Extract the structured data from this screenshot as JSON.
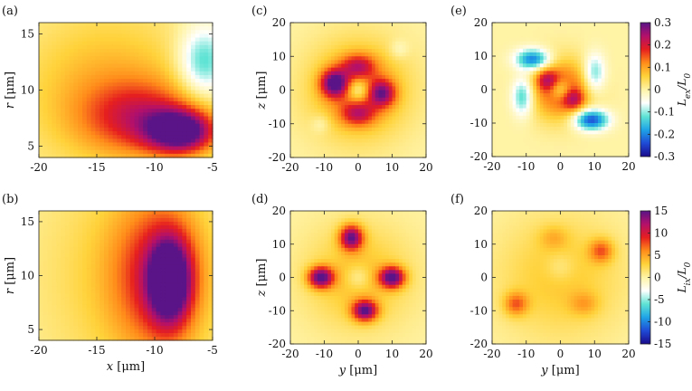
{
  "chart_data": [
    {
      "type": "heatmap",
      "panel_label": "(a)",
      "xlabel": "",
      "ylabel": "r [μm]",
      "xlim": [
        -20,
        -5
      ],
      "ylim": [
        4,
        16
      ],
      "xticks": [
        -20,
        -15,
        -10,
        -5
      ],
      "yticks": [
        5,
        10,
        15
      ],
      "colorbar": "Lex/L0",
      "features": [
        {
          "x": -7.7,
          "y": 6.3,
          "value": 0.3,
          "sx": 2.0,
          "sy": 1.3
        },
        {
          "x": -11.0,
          "y": 7.5,
          "value": 0.15,
          "sx": 3.5,
          "sy": 2.2
        },
        {
          "x": -14.0,
          "y": 10.0,
          "value": 0.09,
          "sx": 5.5,
          "sy": 5.0
        },
        {
          "x": -5.8,
          "y": 12.5,
          "value": -0.15,
          "sx": 1.5,
          "sy": 2.2
        }
      ]
    },
    {
      "type": "heatmap",
      "panel_label": "(b)",
      "xlabel": "x [μm]",
      "ylabel": "r [μm]",
      "xlim": [
        -20,
        -5
      ],
      "ylim": [
        4,
        16
      ],
      "xticks": [
        -20,
        -15,
        -10,
        -5
      ],
      "yticks": [
        5,
        10,
        15
      ],
      "colorbar": "Lix/L0",
      "features": [
        {
          "x": -8.7,
          "y": 9.5,
          "value": 15,
          "sx": 1.2,
          "sy": 2.6
        },
        {
          "x": -9.5,
          "y": 10.0,
          "value": 8,
          "sx": 2.8,
          "sy": 5.0
        },
        {
          "x": -12.5,
          "y": 10.0,
          "value": 3,
          "sx": 5.5,
          "sy": 8.0
        }
      ]
    },
    {
      "type": "heatmap",
      "panel_label": "(c)",
      "xlabel": "",
      "ylabel": "z [μm]",
      "xlim": [
        -20,
        20
      ],
      "ylim": [
        -20,
        20
      ],
      "xticks": [
        -20,
        -10,
        0,
        10,
        20
      ],
      "yticks": [
        -20,
        -10,
        0,
        10,
        20
      ],
      "colorbar": "Lex/L0",
      "features": [
        {
          "x": -7,
          "y": 2,
          "value": 0.25,
          "sx": 2.8,
          "sy": 2.8
        },
        {
          "x": 7,
          "y": -1,
          "value": 0.2,
          "sx": 2.8,
          "sy": 2.8
        },
        {
          "x": 0,
          "y": 7,
          "value": 0.14,
          "sx": 3.5,
          "sy": 2.5
        },
        {
          "x": 0,
          "y": -7,
          "value": 0.14,
          "sx": 3.5,
          "sy": 2.5
        },
        {
          "x": 0,
          "y": 0,
          "value": 0.13,
          "sx": 10.0,
          "sy": 10.0
        },
        {
          "x": 0,
          "y": 0,
          "value": -0.12,
          "sx": 2.5,
          "sy": 2.5
        },
        {
          "x": -11,
          "y": -10,
          "value": -0.04,
          "sx": 2.0,
          "sy": 2.0
        },
        {
          "x": 12,
          "y": 12,
          "value": -0.04,
          "sx": 2.0,
          "sy": 2.0
        }
      ]
    },
    {
      "type": "heatmap",
      "panel_label": "(d)",
      "xlabel": "y [μm]",
      "ylabel": "z [μm]",
      "xlim": [
        -20,
        20
      ],
      "ylim": [
        -20,
        20
      ],
      "xticks": [
        -20,
        -10,
        0,
        10,
        20
      ],
      "yticks": [
        -20,
        -10,
        0,
        10,
        20
      ],
      "colorbar": "Lix/L0",
      "features": [
        {
          "x": -11,
          "y": 0,
          "value": 14,
          "sx": 2.6,
          "sy": 2.2
        },
        {
          "x": 10,
          "y": 0,
          "value": 14,
          "sx": 2.6,
          "sy": 2.2
        },
        {
          "x": -2,
          "y": 12,
          "value": 13,
          "sx": 2.4,
          "sy": 2.6
        },
        {
          "x": 2,
          "y": -10,
          "value": 13,
          "sx": 2.6,
          "sy": 2.2
        },
        {
          "x": 0,
          "y": 0,
          "value": 4,
          "sx": 11.0,
          "sy": 11.0
        },
        {
          "x": 0,
          "y": 0,
          "value": -3,
          "sx": 2.5,
          "sy": 2.5
        }
      ]
    },
    {
      "type": "heatmap",
      "panel_label": "(e)",
      "xlabel": "",
      "ylabel": "",
      "xlim": [
        -20,
        20
      ],
      "ylim": [
        -20,
        20
      ],
      "xticks": [
        -20,
        -10,
        0,
        10,
        20
      ],
      "yticks": [
        -20,
        -10,
        0,
        10,
        20
      ],
      "colorbar": "Lex/L0",
      "features": [
        {
          "x": 0,
          "y": 0,
          "value": 0.18,
          "sx": 6.0,
          "sy": 6.0
        },
        {
          "x": -4,
          "y": 3,
          "value": 0.12,
          "sx": 2.2,
          "sy": 2.2
        },
        {
          "x": 4,
          "y": -3,
          "value": 0.12,
          "sx": 2.2,
          "sy": 2.2
        },
        {
          "x": 0,
          "y": 0,
          "value": -0.12,
          "sx": 2.2,
          "sy": 2.2
        },
        {
          "x": -8,
          "y": 9,
          "value": -0.22,
          "sx": 3.5,
          "sy": 2.2
        },
        {
          "x": 9,
          "y": -9,
          "value": -0.25,
          "sx": 3.5,
          "sy": 2.2
        },
        {
          "x": -11,
          "y": -2,
          "value": -0.15,
          "sx": 2.2,
          "sy": 4.0
        },
        {
          "x": 10,
          "y": 5,
          "value": -0.13,
          "sx": 2.2,
          "sy": 4.0
        }
      ]
    },
    {
      "type": "heatmap",
      "panel_label": "(f)",
      "xlabel": "y [μm]",
      "ylabel": "",
      "xlim": [
        -20,
        20
      ],
      "ylim": [
        -20,
        20
      ],
      "xticks": [
        -20,
        -10,
        0,
        10,
        20
      ],
      "yticks": [
        -20,
        -10,
        0,
        10,
        20
      ],
      "colorbar": "Lix/L0",
      "features": [
        {
          "x": 0,
          "y": 0,
          "value": 3.5,
          "sx": 13.0,
          "sy": 13.0
        },
        {
          "x": -13,
          "y": -8,
          "value": 6,
          "sx": 2.5,
          "sy": 2.5
        },
        {
          "x": 12,
          "y": 8,
          "value": 6,
          "sx": 2.5,
          "sy": 2.5
        },
        {
          "x": 7,
          "y": -8,
          "value": 3,
          "sx": 3.0,
          "sy": 2.5
        },
        {
          "x": -2,
          "y": 12,
          "value": 2.5,
          "sx": 3.0,
          "sy": 2.5
        },
        {
          "x": 0,
          "y": 3,
          "value": -2,
          "sx": 3.0,
          "sy": 3.0
        }
      ]
    }
  ],
  "colorbars": [
    {
      "id": "top",
      "label_main": "L",
      "label_sub": "ex",
      "label_den": "/L",
      "label_den_sub": "0",
      "range": [
        -0.3,
        0.3
      ],
      "ticks": [
        "0.3",
        "0.2",
        "0.1",
        "0",
        "-0.1",
        "-0.2",
        "-0.3"
      ]
    },
    {
      "id": "bottom",
      "label_main": "L",
      "label_sub": "ix",
      "label_den": "/L",
      "label_den_sub": "0",
      "range": [
        -15,
        15
      ],
      "ticks": [
        "15",
        "10",
        "5",
        "0",
        "-5",
        "-10",
        "-15"
      ]
    }
  ],
  "colormap": [
    "#1a0a8c",
    "#1f4bd6",
    "#1fa4e6",
    "#5fe3d4",
    "#ffffff",
    "#fff3a6",
    "#ffd23a",
    "#ff8c1a",
    "#e61f1f",
    "#b3106b",
    "#5a1487"
  ]
}
